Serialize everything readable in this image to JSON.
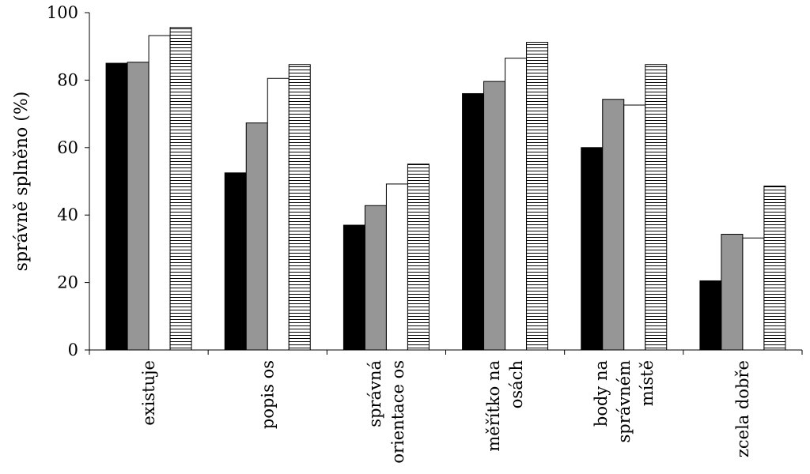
{
  "chart_data": {
    "type": "bar",
    "title": "",
    "xlabel": "",
    "ylabel": "správně splněno (%)",
    "ylim": [
      0,
      100
    ],
    "yticks": [
      0,
      20,
      40,
      60,
      80,
      100
    ],
    "grid": false,
    "legend": "none",
    "categories": [
      [
        "existuje"
      ],
      [
        "popis os"
      ],
      [
        "správná",
        "orientace os"
      ],
      [
        "měřítko na",
        "osách"
      ],
      [
        "body na",
        "správném",
        "místě"
      ],
      [
        "zcela dobře"
      ]
    ],
    "series": [
      {
        "fill": "#000000",
        "pattern": "solid",
        "values": [
          85,
          52.5,
          37,
          76,
          60,
          20.5
        ]
      },
      {
        "fill": "#969696",
        "pattern": "solid",
        "values": [
          85.3,
          67.3,
          42.8,
          79.6,
          74.3,
          34.3
        ]
      },
      {
        "fill": "#ffffff",
        "pattern": "solid",
        "values": [
          93.2,
          80.5,
          49.2,
          86.5,
          72.6,
          33.2
        ]
      },
      {
        "fill": "#ffffff",
        "pattern": "horizontal-stripes",
        "values": [
          95.6,
          84.6,
          55.1,
          91.2,
          84.6,
          48.6
        ]
      }
    ]
  }
}
